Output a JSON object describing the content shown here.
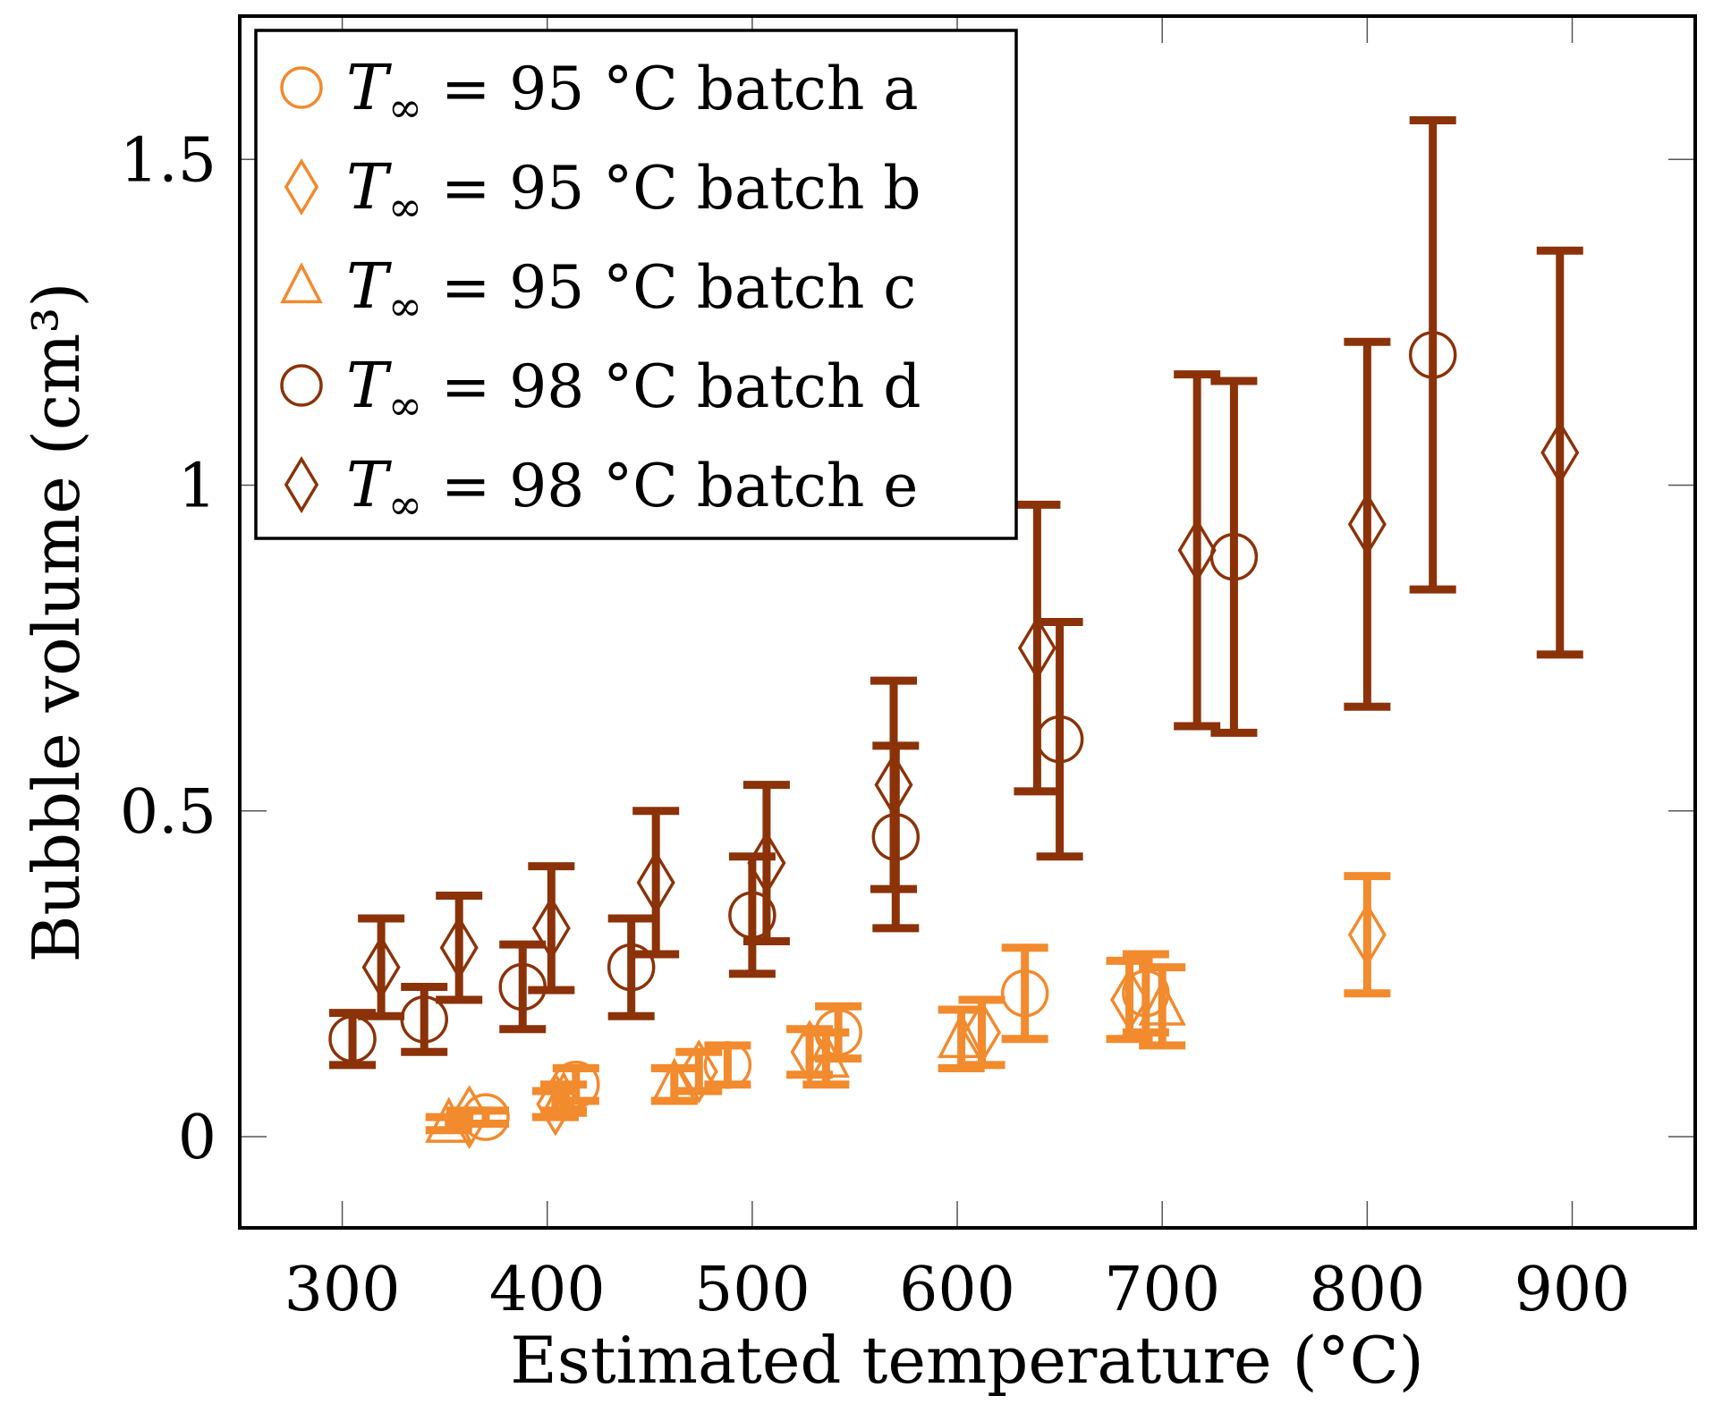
{
  "chart_data": {
    "type": "scatter",
    "title": "",
    "xlabel": "Estimated temperature (°C)",
    "ylabel": "Bubble volume (cm³)",
    "xlim": [
      250,
      960
    ],
    "ylim": [
      -0.14,
      1.72
    ],
    "xticks": [
      300,
      400,
      500,
      600,
      700,
      800,
      900
    ],
    "yticks": [
      0,
      0.5,
      1,
      1.5
    ],
    "xtick_labels": [
      "300",
      "400",
      "500",
      "600",
      "700",
      "800",
      "900"
    ],
    "ytick_labels": [
      "0",
      "0.5",
      "1",
      "1.5"
    ],
    "legend_position": "top-left",
    "series": [
      {
        "name": "T∞ = 95 °C batch a",
        "legend_label": {
          "symbol": "T",
          "subscript": "∞",
          "rest": " = 95 °C batch a"
        },
        "marker": "circle",
        "color": "#F28A2E",
        "points": [
          {
            "x": 370,
            "y": 0.03,
            "err": 0.01
          },
          {
            "x": 414,
            "y": 0.08,
            "err": 0.025
          },
          {
            "x": 488,
            "y": 0.11,
            "err": 0.03
          },
          {
            "x": 542,
            "y": 0.16,
            "err": 0.04
          },
          {
            "x": 633,
            "y": 0.22,
            "err": 0.07
          },
          {
            "x": 692,
            "y": 0.22,
            "err": 0.06
          }
        ]
      },
      {
        "name": "T∞ = 95 °C batch b",
        "legend_label": {
          "symbol": "T",
          "subscript": "∞",
          "rest": " = 95 °C batch b"
        },
        "marker": "diamond",
        "color": "#F28A2E",
        "points": [
          {
            "x": 362,
            "y": 0.03,
            "err": 0.01
          },
          {
            "x": 404,
            "y": 0.05,
            "err": 0.02
          },
          {
            "x": 474,
            "y": 0.1,
            "err": 0.03
          },
          {
            "x": 528,
            "y": 0.13,
            "err": 0.035
          },
          {
            "x": 612,
            "y": 0.16,
            "err": 0.05
          },
          {
            "x": 684,
            "y": 0.21,
            "err": 0.06
          },
          {
            "x": 800,
            "y": 0.31,
            "err": 0.09
          }
        ]
      },
      {
        "name": "T∞ = 95 °C batch c",
        "legend_label": {
          "symbol": "T",
          "subscript": "∞",
          "rest": " = 95 °C batch c"
        },
        "marker": "triangle",
        "color": "#F28A2E",
        "points": [
          {
            "x": 352,
            "y": 0.02,
            "err": 0.01
          },
          {
            "x": 408,
            "y": 0.06,
            "err": 0.02
          },
          {
            "x": 462,
            "y": 0.08,
            "err": 0.025
          },
          {
            "x": 536,
            "y": 0.12,
            "err": 0.04
          },
          {
            "x": 602,
            "y": 0.15,
            "err": 0.045
          },
          {
            "x": 700,
            "y": 0.2,
            "err": 0.06
          }
        ]
      },
      {
        "name": "T∞ = 98 °C batch d",
        "legend_label": {
          "symbol": "T",
          "subscript": "∞",
          "rest": " = 98 °C batch d"
        },
        "marker": "circle",
        "color": "#8B3209",
        "points": [
          {
            "x": 305,
            "y": 0.15,
            "err": 0.04
          },
          {
            "x": 340,
            "y": 0.18,
            "err": 0.05
          },
          {
            "x": 388,
            "y": 0.23,
            "err": 0.065
          },
          {
            "x": 441,
            "y": 0.26,
            "err": 0.075
          },
          {
            "x": 500,
            "y": 0.34,
            "err": 0.09
          },
          {
            "x": 570,
            "y": 0.46,
            "err": 0.14
          },
          {
            "x": 650,
            "y": 0.61,
            "err": 0.18
          },
          {
            "x": 735,
            "y": 0.89,
            "err": 0.27
          },
          {
            "x": 832,
            "y": 1.2,
            "err": 0.36
          }
        ]
      },
      {
        "name": "T∞ = 98 °C batch e",
        "legend_label": {
          "symbol": "T",
          "subscript": "∞",
          "rest": " = 98 °C batch e"
        },
        "marker": "diamond",
        "color": "#8B3209",
        "points": [
          {
            "x": 319,
            "y": 0.26,
            "err": 0.075
          },
          {
            "x": 357,
            "y": 0.29,
            "err": 0.08
          },
          {
            "x": 402,
            "y": 0.32,
            "err": 0.095
          },
          {
            "x": 453,
            "y": 0.39,
            "err": 0.11
          },
          {
            "x": 507,
            "y": 0.42,
            "err": 0.12
          },
          {
            "x": 569,
            "y": 0.54,
            "err": 0.16
          },
          {
            "x": 639,
            "y": 0.75,
            "err": 0.22
          },
          {
            "x": 717,
            "y": 0.9,
            "err": 0.27
          },
          {
            "x": 800,
            "y": 0.94,
            "err": 0.28
          },
          {
            "x": 894,
            "y": 1.05,
            "err": 0.31
          }
        ]
      }
    ]
  }
}
